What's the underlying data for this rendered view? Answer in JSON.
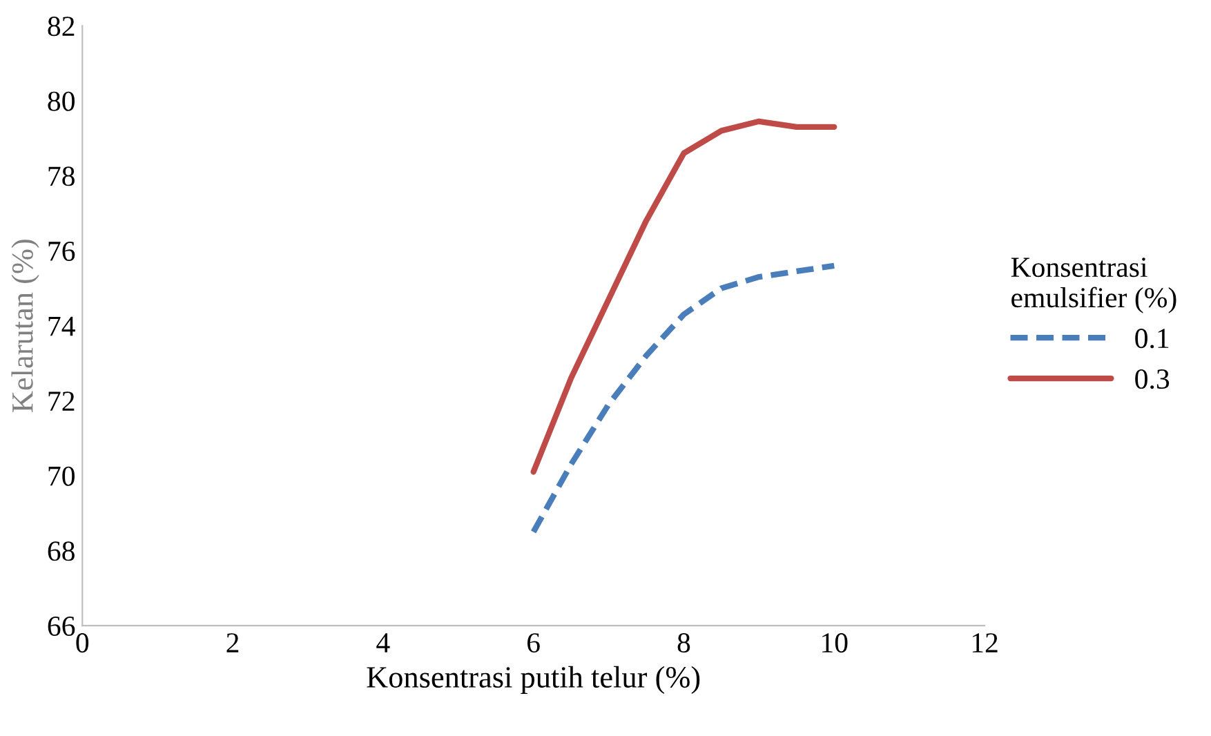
{
  "chart_data": {
    "type": "line",
    "xlabel": "Konsentrasi putih telur (%)",
    "ylabel": "Kelarutan (%)",
    "legend_title": "Konsentrasi\nemulsifier (%)",
    "legend": "right",
    "grid": false,
    "marker": "none",
    "x": [
      6,
      6.5,
      7,
      7.5,
      8,
      8.5,
      9,
      9.5,
      10
    ],
    "series": [
      {
        "name": "0.1",
        "color": "#4a7ebb",
        "line_style": "dashed",
        "values": [
          68.5,
          70.3,
          71.9,
          73.2,
          74.3,
          75.0,
          75.3,
          75.45,
          75.6
        ]
      },
      {
        "name": "0.3",
        "color": "#be4b48",
        "line_style": "solid",
        "values": [
          70.1,
          72.6,
          74.7,
          76.8,
          78.6,
          79.2,
          79.45,
          79.3,
          79.3
        ]
      }
    ],
    "xlim": [
      0,
      12
    ],
    "xticks": [
      0,
      2,
      4,
      6,
      8,
      10,
      12
    ],
    "ylim": [
      66,
      82
    ],
    "yticks": [
      66,
      68,
      70,
      72,
      74,
      76,
      78,
      80,
      82
    ]
  }
}
